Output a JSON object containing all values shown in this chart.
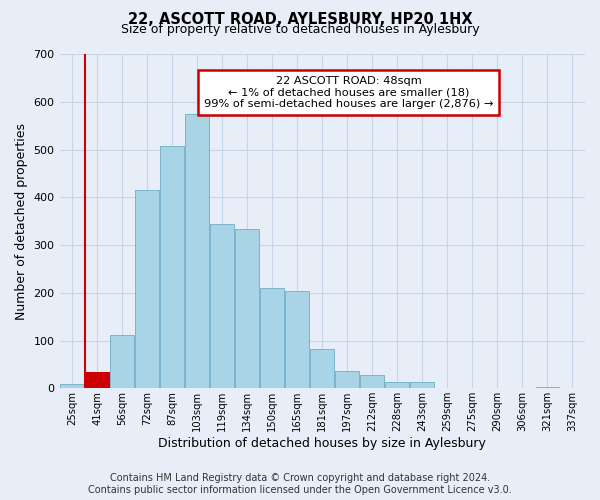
{
  "title": "22, ASCOTT ROAD, AYLESBURY, HP20 1HX",
  "subtitle": "Size of property relative to detached houses in Aylesbury",
  "xlabel": "Distribution of detached houses by size in Aylesbury",
  "ylabel": "Number of detached properties",
  "categories": [
    "25sqm",
    "41sqm",
    "56sqm",
    "72sqm",
    "87sqm",
    "103sqm",
    "119sqm",
    "134sqm",
    "150sqm",
    "165sqm",
    "181sqm",
    "197sqm",
    "212sqm",
    "228sqm",
    "243sqm",
    "259sqm",
    "275sqm",
    "290sqm",
    "306sqm",
    "321sqm",
    "337sqm"
  ],
  "values": [
    8,
    35,
    112,
    415,
    508,
    575,
    345,
    333,
    210,
    203,
    82,
    37,
    27,
    13,
    13,
    0,
    0,
    0,
    0,
    3,
    0
  ],
  "bar_color": "#a8d4e6",
  "bar_edge_color": "#7ab4cc",
  "highlight_color": "#cc0000",
  "highlight_index": 1,
  "annotation_line": "22 ASCOTT ROAD: 48sqm",
  "annotation_line2": "← 1% of detached houses are smaller (18)",
  "annotation_line3": "99% of semi-detached houses are larger (2,876) →",
  "annotation_box_color": "#ffffff",
  "annotation_box_edge": "#cc0000",
  "ylim": [
    0,
    700
  ],
  "yticks": [
    0,
    100,
    200,
    300,
    400,
    500,
    600,
    700
  ],
  "footer": "Contains HM Land Registry data © Crown copyright and database right 2024.\nContains public sector information licensed under the Open Government Licence v3.0.",
  "background_color": "#e8eef8",
  "grid_color": "#c8d4e8"
}
